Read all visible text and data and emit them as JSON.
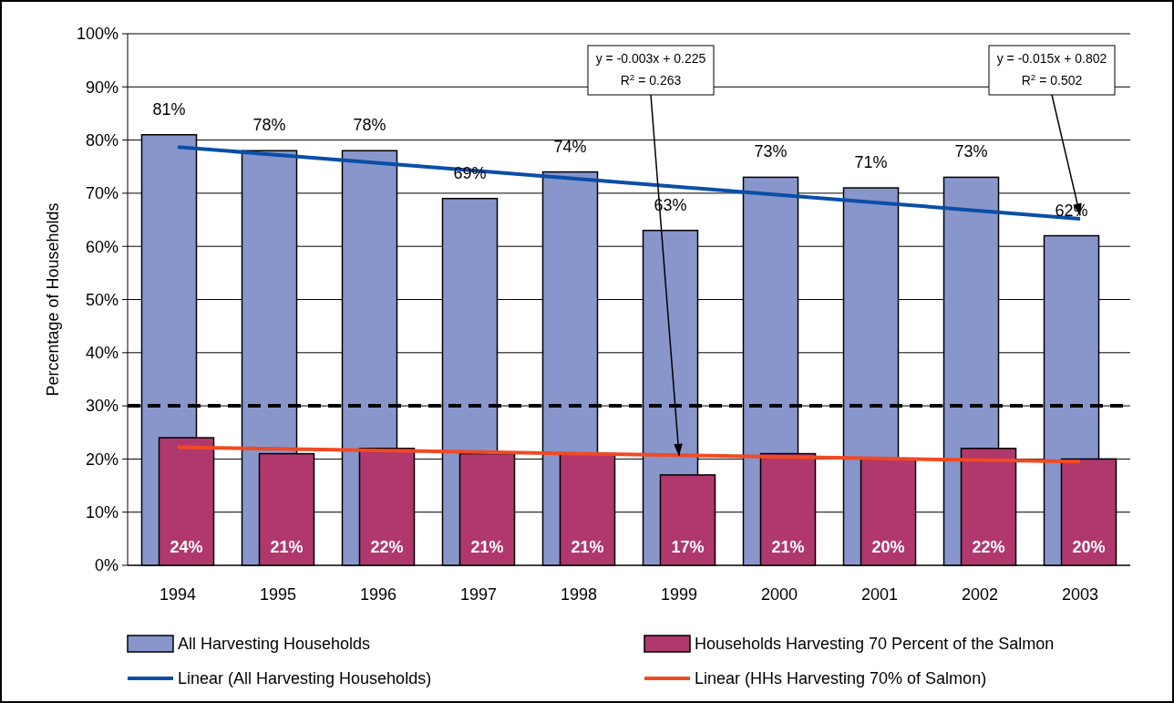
{
  "chart_data": {
    "type": "bar",
    "ylabel": "Percentage of Households",
    "categories": [
      "1994",
      "1995",
      "1996",
      "1997",
      "1998",
      "1999",
      "2000",
      "2001",
      "2002",
      "2003"
    ],
    "series": [
      {
        "name": "All Harvesting Households",
        "color": "#8896cc",
        "values": [
          81,
          78,
          78,
          69,
          74,
          63,
          73,
          71,
          73,
          62
        ],
        "value_labels": [
          "81%",
          "78%",
          "78%",
          "69%",
          "74%",
          "63%",
          "73%",
          "71%",
          "73%",
          "62%"
        ]
      },
      {
        "name": "Households Harvesting 70 Percent of the Salmon",
        "color": "#b0386c",
        "values": [
          24,
          21,
          22,
          21,
          21,
          17,
          21,
          20,
          22,
          20
        ],
        "value_labels": [
          "24%",
          "21%",
          "22%",
          "21%",
          "21%",
          "17%",
          "21%",
          "20%",
          "22%",
          "20%"
        ]
      },
      {
        "name": "Linear (All Harvesting Households)",
        "type": "line",
        "color": "#0a4ea8",
        "values": [
          78.7,
          77.2,
          75.7,
          74.2,
          72.7,
          71.2,
          69.7,
          68.2,
          66.7,
          65.2
        ]
      },
      {
        "name": "Linear (HHs Harvesting 70% of Salmon)",
        "type": "line",
        "color": "#f04a24",
        "values": [
          22.2,
          21.9,
          21.6,
          21.3,
          21.0,
          20.7,
          20.4,
          20.1,
          19.8,
          19.5
        ]
      }
    ],
    "ylim": [
      0,
      100
    ],
    "yticks": [
      {
        "value": 0,
        "label": "0%"
      },
      {
        "value": 10,
        "label": "10%"
      },
      {
        "value": 20,
        "label": "20%"
      },
      {
        "value": 30,
        "label": "30%"
      },
      {
        "value": 40,
        "label": "40%"
      },
      {
        "value": 50,
        "label": "50%"
      },
      {
        "value": 60,
        "label": "60%"
      },
      {
        "value": 70,
        "label": "70%"
      },
      {
        "value": 80,
        "label": "80%"
      },
      {
        "value": 90,
        "label": "90%"
      },
      {
        "value": 100,
        "label": "100%"
      }
    ],
    "grid": "y",
    "legend": "bottom",
    "ref_lines": [
      {
        "axis": "y",
        "value": 30,
        "color": "#000000",
        "line_style": "dashed"
      }
    ],
    "annotations": [
      {
        "text": "y = -0.003x + 0.225\nR$^{2}$ = 0.263",
        "x": "1999",
        "y": 20.6
      },
      {
        "text": "y = -0.015x + 0.802\nR$^{2}$ = 0.502",
        "x": "2003",
        "y": 65.8
      }
    ]
  }
}
